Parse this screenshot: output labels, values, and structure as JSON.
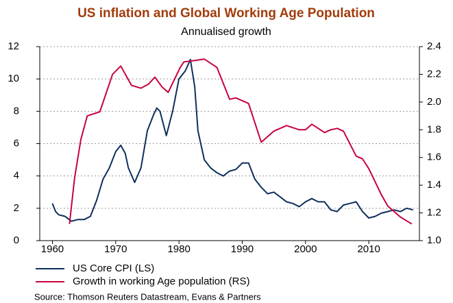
{
  "chart_data": {
    "type": "line",
    "title": "US inflation and Global Working Age Population",
    "subtitle": "Annualised growth",
    "source": "Source: Thomson Reuters Datastream, Evans & Partners",
    "xlim": [
      1958,
      2018
    ],
    "xticks": [
      1960,
      1970,
      1980,
      1990,
      2000,
      2010
    ],
    "ylim": [
      0,
      12
    ],
    "yticks": [
      0,
      2,
      4,
      6,
      8,
      10,
      12
    ],
    "y2lim": [
      1.0,
      2.4
    ],
    "y2ticks": [
      {
        "value": 1.0,
        "label": "1.0"
      },
      1.2,
      1.4,
      1.6,
      1.8,
      {
        "value": 2.0,
        "label": "2.0"
      },
      2.2,
      2.4
    ],
    "grid": true,
    "legend": "bottom",
    "series": [
      {
        "name": "US Core CPI (LS)",
        "color": "#0d2e5c",
        "axis": "y",
        "x": [
          1960,
          1960.5,
          1961,
          1962,
          1963,
          1964,
          1965,
          1966,
          1967,
          1968,
          1969,
          1970,
          1970.8,
          1971.5,
          1972,
          1973,
          1974,
          1975,
          1976,
          1976.5,
          1977,
          1978,
          1979,
          1980,
          1981,
          1981.8,
          1982.5,
          1983,
          1984,
          1985,
          1986,
          1987,
          1988,
          1989,
          1990,
          1991,
          1992,
          1993,
          1994,
          1995,
          1996,
          1997,
          1998,
          1999,
          2000,
          2001,
          2002,
          2003,
          2004,
          2005,
          2006,
          2007,
          2008,
          2009,
          2010,
          2011,
          2012,
          2013,
          2014,
          2015,
          2016,
          2017
        ],
        "values": [
          2.3,
          1.8,
          1.6,
          1.5,
          1.2,
          1.3,
          1.3,
          1.5,
          2.5,
          3.8,
          4.5,
          5.5,
          5.9,
          5.4,
          4.5,
          3.6,
          4.5,
          6.8,
          7.8,
          8.2,
          8.0,
          6.5,
          8.0,
          10.0,
          10.5,
          11.2,
          9.5,
          6.8,
          5.0,
          4.5,
          4.2,
          4.0,
          4.3,
          4.4,
          4.8,
          4.8,
          3.8,
          3.3,
          2.9,
          3.0,
          2.7,
          2.4,
          2.3,
          2.1,
          2.4,
          2.6,
          2.4,
          2.4,
          1.9,
          1.8,
          2.2,
          2.3,
          2.4,
          1.8,
          1.4,
          1.5,
          1.7,
          1.8,
          1.9,
          1.8,
          2.0,
          1.9
        ]
      },
      {
        "name": "Growth in working Age population (RS)",
        "color": "#c8003c",
        "axis": "y2",
        "x": [
          1962.7,
          1963.5,
          1964.5,
          1965.5,
          1967.5,
          1969.5,
          1970.8,
          1972.5,
          1974,
          1975.2,
          1976.2,
          1977.3,
          1978.3,
          1980.2,
          1980.8,
          1982.5,
          1984,
          1986,
          1988,
          1989,
          1991,
          1993,
          1995,
          1997,
          1999,
          2000,
          2001,
          2003,
          2004,
          2005,
          2006,
          2008,
          2009,
          2010,
          2012,
          2013,
          2015,
          2016.8
        ],
        "values": [
          1.12,
          1.45,
          1.73,
          1.9,
          1.93,
          2.2,
          2.26,
          2.12,
          2.1,
          2.13,
          2.18,
          2.11,
          2.07,
          2.25,
          2.29,
          2.3,
          2.31,
          2.25,
          2.02,
          2.03,
          1.99,
          1.71,
          1.79,
          1.83,
          1.8,
          1.8,
          1.84,
          1.78,
          1.8,
          1.81,
          1.79,
          1.61,
          1.59,
          1.52,
          1.33,
          1.25,
          1.17,
          1.12
        ]
      }
    ]
  }
}
